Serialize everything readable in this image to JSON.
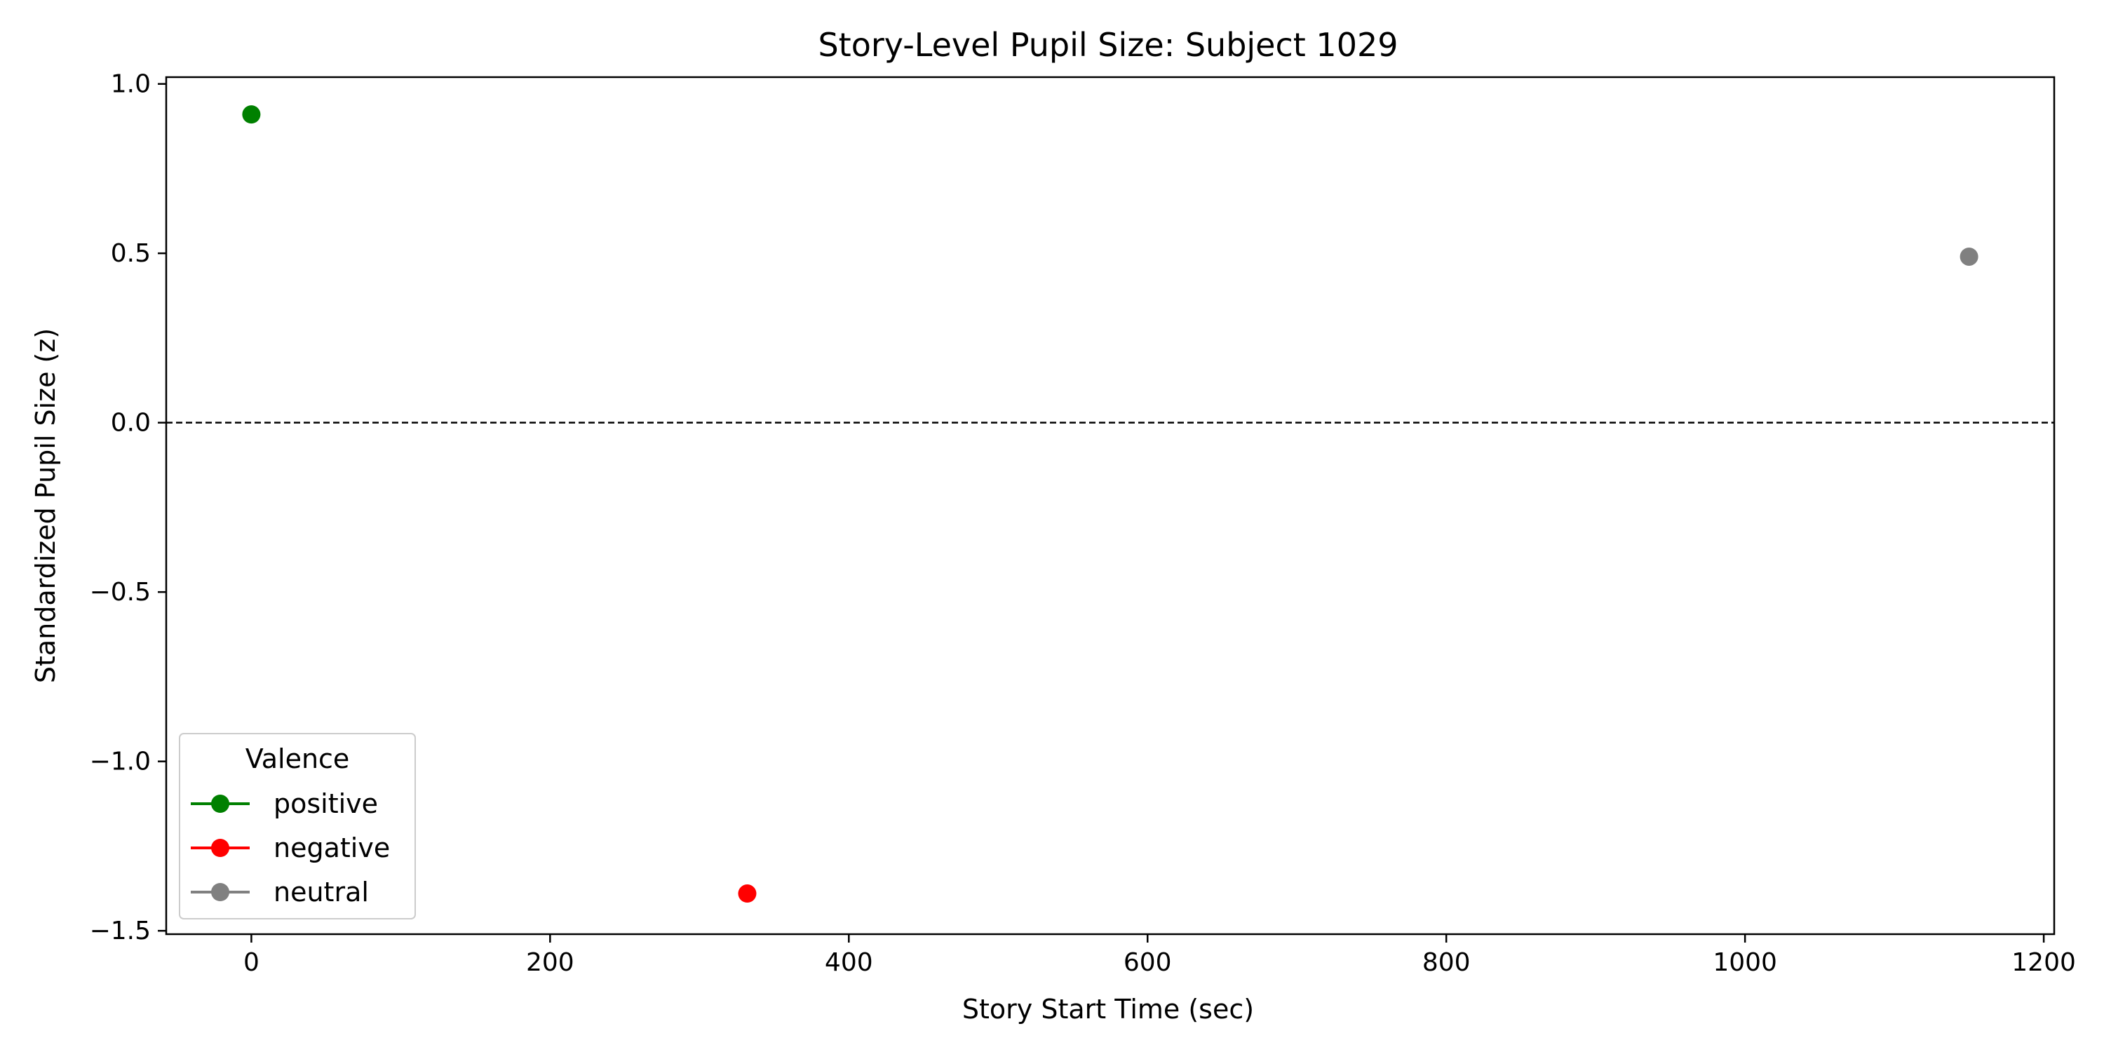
{
  "chart_data": {
    "type": "scatter",
    "title": "Story-Level Pupil Size: Subject 1029",
    "xlabel": "Story Start Time (sec)",
    "ylabel": "Standardized Pupil Size (z)",
    "xlim": [
      -57,
      1207
    ],
    "ylim": [
      -1.51,
      1.02
    ],
    "xticks": [
      0,
      200,
      400,
      600,
      800,
      1000,
      1200
    ],
    "yticks": [
      1.0,
      0.5,
      0.0,
      -0.5,
      -1.0,
      -1.5
    ],
    "ytick_labels": [
      "1.0",
      "0.5",
      "0.0",
      "−0.5",
      "−1.0",
      "−1.5"
    ],
    "reference_line": {
      "y": 0.0,
      "style": "dashed",
      "color": "#000000"
    },
    "grid": false,
    "legend": {
      "title": "Valence",
      "placement": "lower-left"
    },
    "series": [
      {
        "name": "positive",
        "color": "#008000",
        "points": [
          {
            "x": 0,
            "y": 0.91
          }
        ]
      },
      {
        "name": "negative",
        "color": "#ff0000",
        "points": [
          {
            "x": 332,
            "y": -1.39
          }
        ]
      },
      {
        "name": "neutral",
        "color": "#808080",
        "points": [
          {
            "x": 1150,
            "y": 0.49
          }
        ]
      }
    ]
  }
}
